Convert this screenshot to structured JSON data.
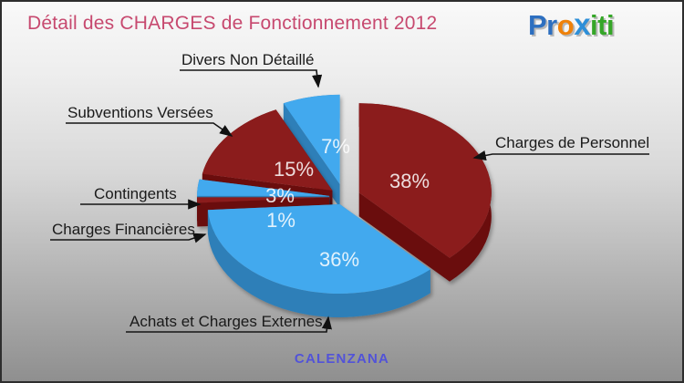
{
  "page": {
    "title": "Détail des CHARGES de Fonctionnement 2012",
    "title_color": "#c7496f",
    "footer": "CALENZANA",
    "footer_color": "#5253d8"
  },
  "logo": {
    "name": "Proxiti",
    "parts": [
      {
        "text": "Pr",
        "color": "#2d6fc0"
      },
      {
        "text": "o",
        "color": "#ef8109"
      },
      {
        "text": "x",
        "color": "#2d8fd8"
      },
      {
        "text": "iti",
        "color": "#35a628"
      }
    ]
  },
  "chart_data": {
    "type": "pie",
    "title": "Détail des CHARGES de Fonctionnement 2012",
    "style": "3d-exploded",
    "unit": "%",
    "start_angle_deg": 0,
    "clockwise": true,
    "legend_position": "callouts-with-arrows",
    "slices": [
      {
        "label": "Charges de Personnel",
        "value": 38,
        "pct_label": "38%",
        "color": "#8b1a1a",
        "side_color": "#6b1111"
      },
      {
        "label": "Achats et Charges Externes",
        "value": 36,
        "pct_label": "36%",
        "color": "#42a9ee",
        "side_color": "#2e7fb8"
      },
      {
        "label": "Charges Financières",
        "value": 1,
        "pct_label": "1%",
        "color": "#8b1a1a",
        "side_color": "#6b1111"
      },
      {
        "label": "Contingents",
        "value": 3,
        "pct_label": "3%",
        "color": "#42a9ee",
        "side_color": "#2e7fb8"
      },
      {
        "label": "Subventions Versées",
        "value": 15,
        "pct_label": "15%",
        "color": "#8b1a1a",
        "side_color": "#6b1111"
      },
      {
        "label": "Divers Non Détaillé",
        "value": 7,
        "pct_label": "7%",
        "color": "#42a9ee",
        "side_color": "#2e7fb8"
      }
    ]
  }
}
